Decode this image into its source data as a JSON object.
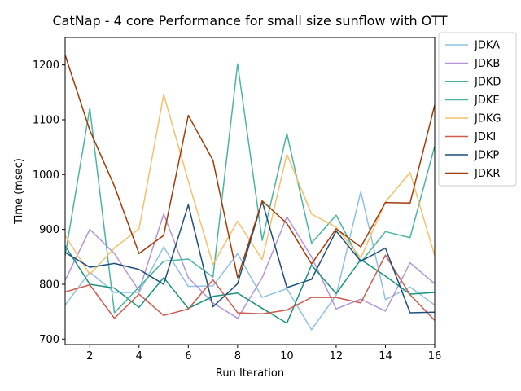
{
  "chart_data": {
    "type": "line",
    "title": "CatNap - 4 core Performance for small size sunflow with OTT",
    "xlabel": "Run Iteration",
    "ylabel": "Time (msec)",
    "xlim": [
      1,
      16
    ],
    "ylim": [
      690,
      1250
    ],
    "xticks": [
      2,
      4,
      6,
      8,
      10,
      12,
      14,
      16
    ],
    "yticks": [
      700,
      800,
      900,
      1000,
      1100,
      1200
    ],
    "grid": false,
    "legend_position": "outside-top-right",
    "x": [
      1,
      2,
      3,
      4,
      5,
      6,
      7,
      8,
      9,
      10,
      11,
      12,
      13,
      14,
      15,
      16
    ],
    "series": [
      {
        "name": "JDKA",
        "color": "#8fc0e3",
        "values": [
          762,
          822,
          785,
          785,
          868,
          796,
          797,
          856,
          776,
          792,
          717,
          780,
          969,
          772,
          795,
          762
        ]
      },
      {
        "name": "JDKB",
        "color": "#b594d6",
        "values": [
          807,
          900,
          856,
          788,
          928,
          812,
          766,
          738,
          812,
          923,
          850,
          755,
          773,
          751,
          839,
          801
        ]
      },
      {
        "name": "JDKD",
        "color": "#17937b",
        "values": [
          870,
          800,
          793,
          758,
          812,
          756,
          778,
          784,
          756,
          729,
          835,
          783,
          845,
          815,
          782,
          785
        ]
      },
      {
        "name": "JDKE",
        "color": "#4ab5a1",
        "values": [
          852,
          1121,
          748,
          795,
          842,
          846,
          813,
          1202,
          880,
          1075,
          875,
          926,
          840,
          896,
          885,
          1052
        ]
      },
      {
        "name": "JDKG",
        "color": "#f4c06a",
        "values": [
          889,
          818,
          866,
          901,
          1146,
          988,
          836,
          915,
          845,
          1037,
          928,
          904,
          848,
          950,
          1004,
          852
        ]
      },
      {
        "name": "JDKI",
        "color": "#cc5a4f",
        "values": [
          786,
          799,
          738,
          782,
          743,
          755,
          808,
          748,
          746,
          753,
          776,
          776,
          766,
          853,
          781,
          734
        ]
      },
      {
        "name": "JDKP",
        "color": "#1e4f7a",
        "values": [
          858,
          831,
          838,
          827,
          800,
          945,
          759,
          801,
          951,
          794,
          809,
          897,
          842,
          866,
          748,
          749
        ]
      },
      {
        "name": "JDKR",
        "color": "#a33b06",
        "values": [
          1218,
          1081,
          979,
          856,
          889,
          1108,
          1026,
          812,
          952,
          911,
          837,
          901,
          868,
          949,
          948,
          1127
        ]
      }
    ]
  }
}
